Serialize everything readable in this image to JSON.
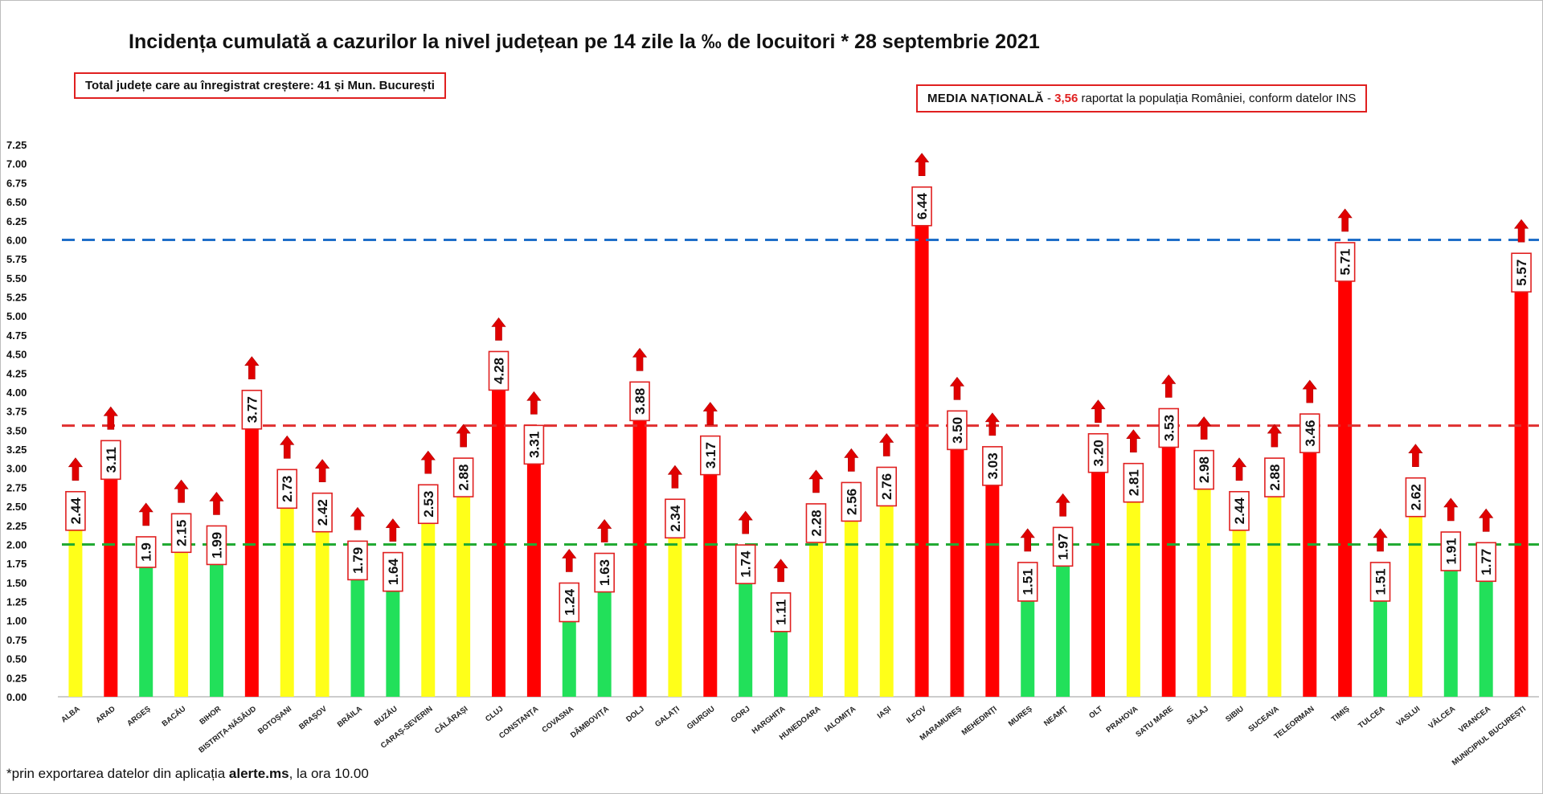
{
  "title": "Incidența cumulată a cazurilor la nivel județean pe 14 zile la ‰ de locuitori * 28 septembrie 2021",
  "total_box": "Total județe care au înregistrat creștere:  41 și Mun. București",
  "media": {
    "label": "MEDIA NAȚIONALĂ",
    "dash": " - ",
    "value": "3,56",
    "rest": " raportat la populația României, conform datelor INS"
  },
  "footnote": {
    "prefix": "*prin exportarea datelor din aplicația ",
    "app": "alerte.ms",
    "suffix": ", la ora 10.00"
  },
  "colors": {
    "green": "#22e05a",
    "yellow": "#ffff19",
    "red": "#ff0000",
    "label_border": "#e02020",
    "line_blue": "#1f6fc9",
    "line_red": "#e03030",
    "line_green": "#22aa33"
  },
  "chart_data": {
    "type": "bar",
    "ylim": [
      0,
      7.25
    ],
    "yticks": [
      "0.00",
      "0.25",
      "0.50",
      "0.75",
      "1.00",
      "1.25",
      "1.50",
      "1.75",
      "2.00",
      "2.25",
      "2.50",
      "2.75",
      "3.00",
      "3.25",
      "3.50",
      "3.75",
      "4.00",
      "4.25",
      "4.50",
      "4.75",
      "5.00",
      "5.25",
      "5.50",
      "5.75",
      "6.00",
      "6.25",
      "6.50",
      "6.75",
      "7.00",
      "7.25"
    ],
    "reference_lines": [
      {
        "y": 6.0,
        "color": "blue",
        "style": "dashed"
      },
      {
        "y": 3.56,
        "color": "red",
        "style": "dashed"
      },
      {
        "y": 2.0,
        "color": "green",
        "style": "dashed"
      }
    ],
    "categories": [
      "ALBA",
      "ARAD",
      "ARGEȘ",
      "BACĂU",
      "BIHOR",
      "BISTRIȚA-NĂSĂUD",
      "BOTOȘANI",
      "BRAȘOV",
      "BRĂILA",
      "BUZĂU",
      "CARAȘ-SEVERIN",
      "CĂLĂRAȘI",
      "CLUJ",
      "CONSTANȚA",
      "COVASNA",
      "DÂMBOVIȚA",
      "DOLJ",
      "GALAȚI",
      "GIURGIU",
      "GORJ",
      "HARGHITA",
      "HUNEDOARA",
      "IALOMIȚA",
      "IAȘI",
      "ILFOV",
      "MARAMUREȘ",
      "MEHEDINȚI",
      "MUREȘ",
      "NEAMȚ",
      "OLT",
      "PRAHOVA",
      "SATU MARE",
      "SĂLAJ",
      "SIBIU",
      "SUCEAVA",
      "TELEORMAN",
      "TIMIȘ",
      "TULCEA",
      "VASLUI",
      "VÂLCEA",
      "VRANCEA",
      "MUNICIPIUL BUCUREȘTI"
    ],
    "values": [
      2.44,
      3.11,
      1.9,
      2.15,
      1.99,
      3.77,
      2.73,
      2.42,
      1.79,
      1.64,
      2.53,
      2.88,
      4.28,
      3.31,
      1.24,
      1.63,
      3.88,
      2.34,
      3.17,
      1.74,
      1.11,
      2.28,
      2.56,
      2.76,
      6.44,
      3.5,
      3.03,
      1.51,
      1.97,
      3.2,
      2.81,
      3.53,
      2.98,
      2.44,
      2.88,
      3.46,
      5.71,
      1.51,
      2.62,
      1.91,
      1.77,
      5.57
    ],
    "value_labels": [
      "2.44",
      "3.11",
      "1.9",
      "2.15",
      "1.99",
      "3.77",
      "2.73",
      "2.42",
      "1.79",
      "1.64",
      "2.53",
      "2.88",
      "4.28",
      "3.31",
      "1.24",
      "1.63",
      "3.88",
      "2.34",
      "3.17",
      "1.74",
      "1.11",
      "2.28",
      "2.56",
      "2.76",
      "6.44",
      "3.50",
      "3.03",
      "1.51",
      "1.97",
      "3.20",
      "2.81",
      "3.53",
      "2.98",
      "2.44",
      "2.88",
      "3.46",
      "5.71",
      "1.51",
      "2.62",
      "1.91",
      "1.77",
      "5.57"
    ],
    "bar_colors": [
      "yellow",
      "red",
      "green",
      "yellow",
      "green",
      "red",
      "yellow",
      "yellow",
      "green",
      "green",
      "yellow",
      "yellow",
      "red",
      "red",
      "green",
      "green",
      "red",
      "yellow",
      "red",
      "green",
      "green",
      "yellow",
      "yellow",
      "yellow",
      "red",
      "red",
      "red",
      "green",
      "green",
      "red",
      "yellow",
      "red",
      "yellow",
      "yellow",
      "yellow",
      "red",
      "red",
      "green",
      "yellow",
      "green",
      "green",
      "red"
    ],
    "trend": "up"
  }
}
